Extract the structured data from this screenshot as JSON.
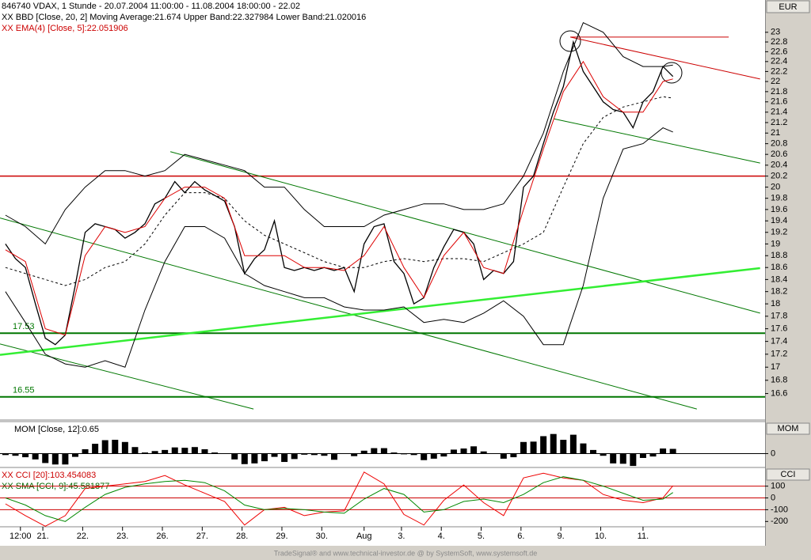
{
  "chart_data": [
    {
      "type": "line",
      "log": true,
      "title": "846740 VDAX, 1 Stunde - 20.07.2004 11:00:00 - 11.08.2004 18:00:00 - 22.02",
      "subtitles": [
        {
          "text": "XX BBD [Close, 20, 2] Moving Average:21.674 Upper Band:22.327984 Lower Band:21.020016",
          "color": "#000000"
        },
        {
          "text": "XX EMA(4) [Close, 5]:22.051906",
          "color": "#cc0000"
        }
      ],
      "axis_label": "EUR",
      "xlim": [
        -1.1,
        152.5
      ],
      "ylim": [
        16.22,
        23.68
      ],
      "xticks": [
        {
          "value": 3,
          "label": "12:00"
        },
        {
          "value": 7.5,
          "label": "21."
        },
        {
          "value": 15.5,
          "label": "22."
        },
        {
          "value": 23.5,
          "label": "23."
        },
        {
          "value": 31.5,
          "label": "26."
        },
        {
          "value": 39.5,
          "label": "27."
        },
        {
          "value": 47.5,
          "label": "28."
        },
        {
          "value": 55.5,
          "label": "29."
        },
        {
          "value": 63.5,
          "label": "30."
        },
        {
          "value": 72,
          "label": "Aug"
        },
        {
          "value": 79.5,
          "label": "3."
        },
        {
          "value": 87.5,
          "label": "4."
        },
        {
          "value": 95.5,
          "label": "5."
        },
        {
          "value": 103.5,
          "label": "6."
        },
        {
          "value": 111.5,
          "label": "9."
        },
        {
          "value": 119.5,
          "label": "10."
        },
        {
          "value": 128,
          "label": "11."
        }
      ],
      "yticks": [
        23,
        22.8,
        22.6,
        22.4,
        22.2,
        22,
        21.8,
        21.6,
        21.4,
        21.2,
        21,
        20.8,
        20.6,
        20.4,
        20.2,
        20,
        19.8,
        19.6,
        19.4,
        19.2,
        19,
        18.8,
        18.6,
        18.4,
        18.2,
        18,
        17.8,
        17.6,
        17.4,
        17.2,
        17,
        16.8,
        16.6
      ],
      "series": [
        {
          "name": "Close",
          "color": "#000000",
          "width": 1.3,
          "dash": false,
          "x": [
            0,
            2,
            4,
            6,
            8,
            10,
            12,
            14,
            16,
            18,
            20,
            22,
            24,
            26,
            28,
            30,
            32,
            34,
            36,
            38,
            40,
            42,
            44,
            46,
            48,
            50,
            52,
            54,
            56,
            58,
            60,
            62,
            64,
            66,
            68,
            70,
            72,
            74,
            76,
            78,
            80,
            82,
            84,
            86,
            88,
            90,
            92,
            94,
            96,
            98,
            100,
            102,
            104,
            106,
            108,
            110,
            112,
            114,
            116,
            118,
            120,
            122,
            124,
            126,
            128,
            130,
            132,
            134
          ],
          "values": [
            19.0,
            18.75,
            18.6,
            18.0,
            17.45,
            17.35,
            17.5,
            18.3,
            19.2,
            19.35,
            19.3,
            19.25,
            19.1,
            19.2,
            19.35,
            19.7,
            19.8,
            20.1,
            19.9,
            20.1,
            19.95,
            19.85,
            19.75,
            19.3,
            18.5,
            18.75,
            18.9,
            19.4,
            18.6,
            18.55,
            18.6,
            18.55,
            18.6,
            18.55,
            18.6,
            18.2,
            19.0,
            19.3,
            19.35,
            18.7,
            18.5,
            18.0,
            18.1,
            18.6,
            18.95,
            19.25,
            19.2,
            19.0,
            18.4,
            18.55,
            18.5,
            18.7,
            20.0,
            20.2,
            20.8,
            21.4,
            21.9,
            22.8,
            22.2,
            21.9,
            21.6,
            21.45,
            21.4,
            21.1,
            21.6,
            21.8,
            22.3,
            22.1
          ]
        },
        {
          "name": "Upper Band",
          "color": "#000000",
          "width": 1,
          "dash": false,
          "x": [
            0,
            4,
            8,
            12,
            16,
            20,
            24,
            28,
            32,
            36,
            40,
            44,
            48,
            52,
            56,
            60,
            64,
            68,
            72,
            76,
            80,
            84,
            88,
            92,
            96,
            100,
            104,
            108,
            112,
            116,
            120,
            124,
            128,
            132,
            134
          ],
          "values": [
            19.5,
            19.3,
            19.0,
            19.6,
            20.0,
            20.3,
            20.3,
            20.2,
            20.3,
            20.6,
            20.5,
            20.4,
            20.3,
            20.0,
            20.0,
            19.6,
            19.3,
            19.3,
            19.3,
            19.5,
            19.6,
            19.7,
            19.7,
            19.6,
            19.6,
            19.7,
            20.2,
            21.0,
            22.2,
            23.2,
            23.0,
            22.5,
            22.3,
            22.3,
            22.327984
          ]
        },
        {
          "name": "Moving Average",
          "color": "#000000",
          "width": 1,
          "dash": true,
          "x": [
            0,
            4,
            8,
            12,
            16,
            20,
            24,
            28,
            32,
            36,
            40,
            44,
            48,
            52,
            56,
            60,
            64,
            68,
            72,
            76,
            80,
            84,
            88,
            92,
            96,
            100,
            104,
            108,
            112,
            116,
            120,
            124,
            128,
            132,
            134
          ],
          "values": [
            18.6,
            18.5,
            18.4,
            18.3,
            18.4,
            18.6,
            18.7,
            19.0,
            19.5,
            19.9,
            19.9,
            19.8,
            19.4,
            19.15,
            19.0,
            18.85,
            18.7,
            18.6,
            18.6,
            18.7,
            18.75,
            18.7,
            18.75,
            18.75,
            18.7,
            18.85,
            19.0,
            19.2,
            20.0,
            20.8,
            21.3,
            21.5,
            21.6,
            21.7,
            21.674
          ]
        },
        {
          "name": "Lower Band",
          "color": "#000000",
          "width": 1,
          "dash": false,
          "x": [
            0,
            4,
            8,
            12,
            16,
            20,
            24,
            28,
            32,
            36,
            40,
            44,
            48,
            52,
            56,
            60,
            64,
            68,
            72,
            76,
            80,
            84,
            88,
            92,
            96,
            100,
            104,
            108,
            112,
            116,
            120,
            124,
            128,
            132,
            134
          ],
          "values": [
            18.2,
            17.7,
            17.2,
            17.05,
            17.0,
            17.1,
            17.0,
            17.9,
            18.7,
            19.3,
            19.3,
            19.1,
            18.5,
            18.3,
            18.2,
            18.1,
            18.1,
            17.95,
            17.9,
            17.9,
            17.95,
            17.7,
            17.75,
            17.7,
            17.85,
            18.05,
            17.8,
            17.35,
            17.35,
            18.3,
            19.8,
            20.7,
            20.8,
            21.1,
            21.020016
          ]
        },
        {
          "name": "EMA",
          "color": "#dd0000",
          "width": 1,
          "dash": false,
          "x": [
            0,
            4,
            8,
            12,
            16,
            20,
            24,
            28,
            32,
            36,
            40,
            44,
            48,
            52,
            56,
            60,
            64,
            68,
            72,
            76,
            80,
            84,
            88,
            92,
            96,
            100,
            104,
            108,
            112,
            116,
            120,
            124,
            128,
            132,
            134
          ],
          "values": [
            18.9,
            18.7,
            17.6,
            17.5,
            18.8,
            19.3,
            19.2,
            19.3,
            19.8,
            20.0,
            20.0,
            19.8,
            18.8,
            18.8,
            18.8,
            18.6,
            18.6,
            18.55,
            18.8,
            19.3,
            18.6,
            18.1,
            18.8,
            19.2,
            18.6,
            18.5,
            19.6,
            20.7,
            21.8,
            22.4,
            21.7,
            21.4,
            21.4,
            22.0,
            22.051906
          ]
        }
      ],
      "hlines": [
        {
          "value": 20.2,
          "color": "#cc0000",
          "width": 1.5,
          "labeled": false
        },
        {
          "value": 17.53,
          "color": "#007700",
          "width": 2,
          "labeled": true
        },
        {
          "value": 16.55,
          "color": "#007700",
          "width": 2,
          "labeled": true
        }
      ],
      "trendlines": [
        {
          "color": "#cc0000",
          "width": 1,
          "x": [
            113.4,
            151.5
          ],
          "y": [
            22.9,
            22.05
          ]
        },
        {
          "color": "#cc0000",
          "width": 1,
          "x": [
            113.4,
            145.2
          ],
          "y": [
            22.9,
            22.9
          ]
        },
        {
          "color": "#007700",
          "width": 1,
          "x": [
            -1.1,
            138.8
          ],
          "y": [
            19.45,
            16.37
          ]
        },
        {
          "color": "#007700",
          "width": 1,
          "x": [
            33.1,
            151.5
          ],
          "y": [
            20.65,
            17.85
          ]
        },
        {
          "color": "#007700",
          "width": 1,
          "x": [
            -1.1,
            49.8
          ],
          "y": [
            17.36,
            16.37
          ]
        },
        {
          "color": "#007700",
          "width": 1,
          "x": [
            110.2,
            151.5
          ],
          "y": [
            21.27,
            20.44
          ]
        },
        {
          "color": "#33ee33",
          "width": 2.5,
          "x": [
            -1.1,
            151.5
          ],
          "y": [
            17.19,
            18.59
          ]
        }
      ]
    },
    {
      "type": "bar",
      "title": "MOM [Close, 12]:0.65",
      "axis_label": "MOM",
      "color": "#000000",
      "xlim": [
        -1.1,
        152.5
      ],
      "ylim": [
        -1.8,
        4.3
      ],
      "yticks": [
        0
      ],
      "x": [
        0,
        2,
        4,
        6,
        8,
        10,
        12,
        14,
        16,
        18,
        20,
        22,
        24,
        26,
        28,
        30,
        32,
        34,
        36,
        38,
        40,
        42,
        44,
        46,
        48,
        50,
        52,
        54,
        56,
        58,
        60,
        62,
        64,
        66,
        68,
        70,
        72,
        74,
        76,
        78,
        80,
        82,
        84,
        86,
        88,
        90,
        92,
        94,
        96,
        98,
        100,
        102,
        104,
        106,
        108,
        110,
        112,
        114,
        116,
        118,
        120,
        122,
        124,
        126,
        128,
        130,
        132,
        134
      ],
      "values": [
        -0.2,
        -0.3,
        -0.5,
        -0.8,
        -1.3,
        -1.5,
        -1.5,
        -0.45,
        0.6,
        1.35,
        1.85,
        1.9,
        1.6,
        0.9,
        0.15,
        0.35,
        0.5,
        0.85,
        0.8,
        0.9,
        0.6,
        0.15,
        -0.05,
        -0.8,
        -1.45,
        -1.35,
        -1.05,
        -0.45,
        -1.15,
        -0.75,
        -0.15,
        -0.2,
        -0.3,
        -0.85,
        0.0,
        -0.35,
        0.4,
        0.75,
        0.75,
        0.15,
        -0.1,
        -0.2,
        -0.9,
        -0.7,
        -0.4,
        0.55,
        0.7,
        1.0,
        0.3,
        -0.05,
        -0.7,
        -0.5,
        1.6,
        1.65,
        2.4,
        2.7,
        1.9,
        2.6,
        1.4,
        0.5,
        -0.3,
        -1.35,
        -1.4,
        -1.7,
        -0.6,
        -0.4,
        0.7,
        0.65
      ]
    },
    {
      "type": "line",
      "axis_label": "CCI",
      "subtitles": [
        {
          "text": "XX CCI [20]:103.454083",
          "color": "#cc0000"
        },
        {
          "text": "XX SMA [CCI, 9]:45.581877",
          "color": "#006600"
        }
      ],
      "xlim": [
        -1.1,
        152.5
      ],
      "ylim": [
        -245,
        252
      ],
      "yticks": [
        100,
        0,
        -100,
        -200
      ],
      "hlines": [
        {
          "value": 100,
          "color": "#cc0000",
          "width": 1,
          "labeled": false
        },
        {
          "value": 0,
          "color": "#cc0000",
          "width": 1,
          "labeled": false
        },
        {
          "value": -100,
          "color": "#cc0000",
          "width": 1,
          "labeled": false
        }
      ],
      "series": [
        {
          "name": "CCI",
          "color": "#ee0000",
          "width": 1,
          "dash": false,
          "x": [
            0,
            4,
            8,
            12,
            16,
            20,
            24,
            28,
            32,
            36,
            40,
            44,
            48,
            52,
            56,
            60,
            64,
            68,
            72,
            76,
            80,
            84,
            88,
            92,
            96,
            100,
            104,
            108,
            112,
            116,
            120,
            124,
            128,
            132,
            134
          ],
          "values": [
            -50,
            -150,
            -240,
            -150,
            80,
            100,
            120,
            140,
            190,
            110,
            40,
            -30,
            -230,
            -100,
            -80,
            -150,
            -120,
            -110,
            220,
            120,
            -140,
            -230,
            -20,
            110,
            -40,
            -150,
            170,
            210,
            170,
            150,
            30,
            -20,
            -40,
            0,
            103.454083
          ]
        },
        {
          "name": "SMA",
          "color": "#008800",
          "width": 1,
          "dash": false,
          "x": [
            0,
            4,
            8,
            12,
            16,
            20,
            24,
            28,
            32,
            36,
            40,
            44,
            48,
            52,
            56,
            60,
            64,
            68,
            72,
            76,
            80,
            84,
            88,
            92,
            96,
            100,
            104,
            108,
            112,
            116,
            120,
            124,
            128,
            132,
            134
          ],
          "values": [
            0,
            -60,
            -150,
            -200,
            -80,
            30,
            90,
            120,
            140,
            150,
            130,
            60,
            -60,
            -100,
            -90,
            -100,
            -120,
            -130,
            -10,
            80,
            30,
            -120,
            -100,
            -30,
            -10,
            -40,
            30,
            130,
            180,
            150,
            100,
            40,
            -20,
            -10,
            45.581877
          ]
        }
      ]
    }
  ],
  "footer": "TradeSignal® and www.technical-investor.de @ by SystemSoft, www.systemsoft.de"
}
